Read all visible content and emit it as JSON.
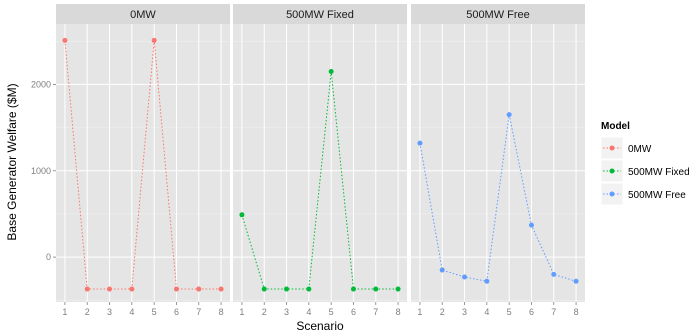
{
  "chart_data": {
    "type": "line",
    "xlabel": "Scenario",
    "ylabel": "Base Generator Welfare ($M)",
    "x": [
      1,
      2,
      3,
      4,
      5,
      6,
      7,
      8
    ],
    "xlim": [
      0.6,
      8.4
    ],
    "ylim": [
      -520,
      2700
    ],
    "y_ticks": [
      0,
      1000,
      2000
    ],
    "grid": true,
    "legend": {
      "title": "Model",
      "placement": "right",
      "entries": [
        "0MW",
        "500MW Fixed",
        "500MW Free"
      ]
    },
    "colors": [
      "#F8766D",
      "#00BA38",
      "#619CFF"
    ],
    "panels": [
      {
        "label": "0MW",
        "series_index": 0,
        "values": [
          2510,
          -370,
          -370,
          -370,
          2510,
          -370,
          -370,
          -370
        ]
      },
      {
        "label": "500MW Fixed",
        "series_index": 1,
        "values": [
          490,
          -370,
          -370,
          -370,
          2150,
          -370,
          -370,
          -370
        ]
      },
      {
        "label": "500MW Free",
        "series_index": 2,
        "values": [
          1320,
          -150,
          -230,
          -280,
          1650,
          370,
          -200,
          -280
        ]
      }
    ]
  }
}
